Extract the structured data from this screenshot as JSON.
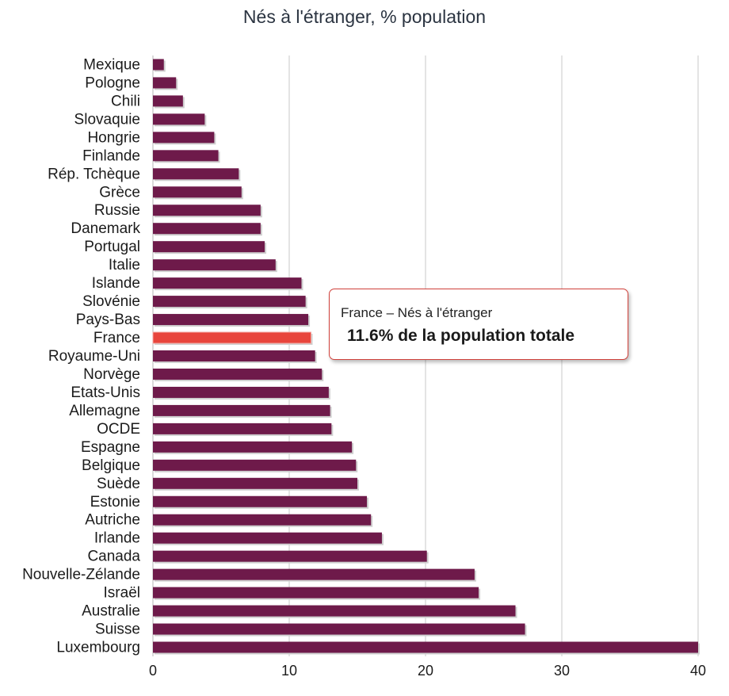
{
  "chart_data": {
    "type": "bar",
    "orientation": "horizontal",
    "title": "Nés à l'étranger, % population",
    "categories": [
      "Mexique",
      "Pologne",
      "Chili",
      "Slovaquie",
      "Hongrie",
      "Finlande",
      "Rép. Tchèque",
      "Grèce",
      "Russie",
      "Danemark",
      "Portugal",
      "Italie",
      "Islande",
      "Slovénie",
      "Pays-Bas",
      "France",
      "Royaume-Uni",
      "Norvège",
      "Etats-Unis",
      "Allemagne",
      "OCDE",
      "Espagne",
      "Belgique",
      "Suède",
      "Estonie",
      "Autriche",
      "Irlande",
      "Canada",
      "Nouvelle-Zélande",
      "Israël",
      "Australie",
      "Suisse",
      "Luxembourg"
    ],
    "values": [
      0.8,
      1.7,
      2.2,
      3.8,
      4.5,
      4.8,
      6.3,
      6.5,
      7.9,
      7.9,
      8.2,
      9.0,
      10.9,
      11.2,
      11.4,
      11.6,
      11.9,
      12.4,
      12.9,
      13.0,
      13.1,
      14.6,
      14.9,
      15.0,
      15.7,
      16.0,
      16.8,
      20.1,
      23.6,
      23.9,
      26.6,
      27.3,
      40.0
    ],
    "highlight": "France",
    "xlim": [
      0,
      40
    ],
    "xticks": [
      0,
      10,
      20,
      30,
      40
    ],
    "grid": true,
    "legend": "none",
    "colors": {
      "bar": "#6e1a4a",
      "highlight": "#e8453c",
      "grid": "#c9c9c9"
    },
    "tooltip": {
      "line1": "France – Nés à l'étranger",
      "line2": "11.6% de la population totale"
    }
  }
}
